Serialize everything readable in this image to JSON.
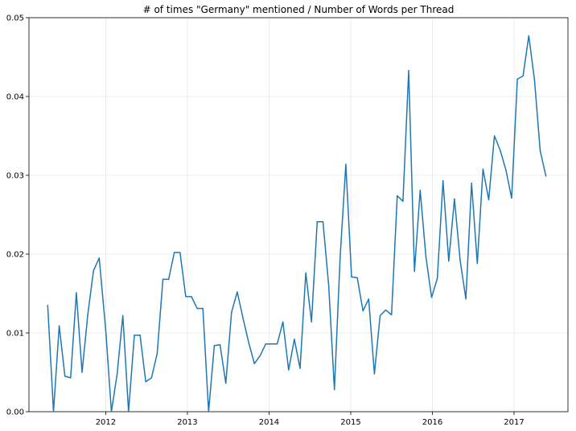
{
  "chart_data": {
    "type": "line",
    "title": "# of times \"Germany\" mentioned / Number of Words per Thread",
    "xlabel": "",
    "ylabel": "",
    "xlim": [
      2011.06,
      2017.66
    ],
    "ylim": [
      0,
      0.05
    ],
    "grid": true,
    "x_ticks": [
      2012,
      2013,
      2014,
      2015,
      2016,
      2017
    ],
    "x_tick_labels": [
      "2012",
      "2013",
      "2014",
      "2015",
      "2016",
      "2017"
    ],
    "y_ticks": [
      0,
      0.01,
      0.02,
      0.03,
      0.04,
      0.05
    ],
    "y_tick_labels": [
      "0.00",
      "0.01",
      "0.02",
      "0.03",
      "0.04",
      "0.05"
    ],
    "color": "#1f77b4",
    "series": [
      {
        "x": [
          2011.29,
          2011.36,
          2011.43,
          2011.5,
          2011.57,
          2011.64,
          2011.71,
          2011.78,
          2011.85,
          2011.92,
          2012.0,
          2012.07,
          2012.14,
          2012.21,
          2012.28,
          2012.35,
          2012.42,
          2012.49,
          2012.56,
          2012.63,
          2012.7,
          2012.77,
          2012.84,
          2012.91,
          2012.98,
          2013.05,
          2013.12,
          2013.19,
          2013.26,
          2013.33,
          2013.4,
          2013.47,
          2013.54,
          2013.61,
          2013.68,
          2013.75,
          2013.82,
          2013.89,
          2013.96,
          2014.03,
          2014.1,
          2014.17,
          2014.24,
          2014.31,
          2014.38,
          2014.45,
          2014.52,
          2014.59,
          2014.66,
          2014.73,
          2014.8,
          2014.87,
          2014.94,
          2015.01,
          2015.08,
          2015.15,
          2015.22,
          2015.29,
          2015.36,
          2015.43,
          2015.5,
          2015.57,
          2015.64,
          2015.71,
          2015.78,
          2015.85,
          2015.92,
          2015.99,
          2016.06,
          2016.13,
          2016.2,
          2016.27,
          2016.34,
          2016.41,
          2016.48,
          2016.55,
          2016.62,
          2016.69,
          2016.76,
          2016.83,
          2016.9,
          2016.97,
          2017.04,
          2017.11,
          2017.18,
          2017.25,
          2017.32,
          2017.39
        ],
        "y": [
          0.0135,
          0.0,
          0.0109,
          0.0045,
          0.0043,
          0.0151,
          0.005,
          0.0123,
          0.0179,
          0.0195,
          0.0104,
          0.0,
          0.0048,
          0.0122,
          0.0,
          0.0097,
          0.0097,
          0.0038,
          0.0043,
          0.0074,
          0.0168,
          0.0168,
          0.0202,
          0.0202,
          0.0146,
          0.0146,
          0.0131,
          0.0131,
          0.0,
          0.0084,
          0.0085,
          0.0036,
          0.0126,
          0.0152,
          0.0119,
          0.0088,
          0.0061,
          0.0071,
          0.0086,
          0.0086,
          0.0086,
          0.0114,
          0.0053,
          0.0092,
          0.0055,
          0.0176,
          0.0114,
          0.0241,
          0.0241,
          0.016,
          0.0028,
          0.0196,
          0.0314,
          0.0171,
          0.017,
          0.0128,
          0.0143,
          0.0048,
          0.0122,
          0.0129,
          0.0123,
          0.0274,
          0.0267,
          0.0433,
          0.0178,
          0.0281,
          0.0197,
          0.0145,
          0.0169,
          0.0293,
          0.0191,
          0.027,
          0.0192,
          0.0143,
          0.029,
          0.0188,
          0.0308,
          0.0269,
          0.035,
          0.0332,
          0.0307,
          0.0271,
          0.0422,
          0.0426,
          0.0477,
          0.0421,
          0.0331,
          0.0299
        ]
      }
    ]
  }
}
